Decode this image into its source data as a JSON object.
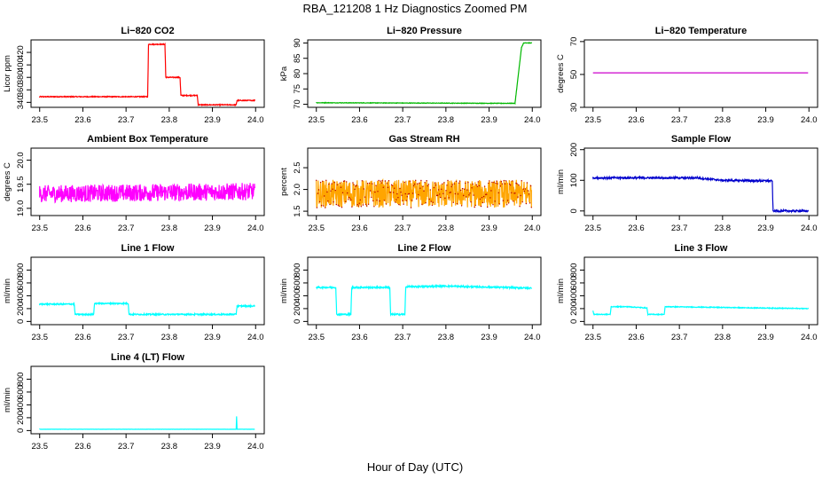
{
  "figure": {
    "title": "RBA_121208  1 Hz Diagnostics Zoomed PM",
    "xlabel": "Hour of Day (UTC)"
  },
  "chart_data": [
    {
      "type": "line",
      "title": "Li−820 CO2",
      "ylabel": "Licor ppm",
      "xlim": [
        23.48,
        24.02
      ],
      "ylim": [
        332,
        440
      ],
      "xticks": [
        "23.5",
        "23.6",
        "23.7",
        "23.8",
        "23.9",
        "24.0"
      ],
      "xtick_values": [
        23.5,
        23.6,
        23.7,
        23.8,
        23.9,
        24.0
      ],
      "yticks": [
        "340",
        "360",
        "380",
        "400",
        "420"
      ],
      "ytick_values": [
        340,
        360,
        380,
        400,
        420
      ],
      "color": "#ff0000",
      "noise": 0.7,
      "series": [
        {
          "name": "CO2",
          "segments": [
            [
              23.5,
              349
            ],
            [
              23.75,
              349
            ],
            [
              23.752,
              433
            ],
            [
              23.79,
              433
            ],
            [
              23.792,
              380
            ],
            [
              23.825,
              380
            ],
            [
              23.827,
              351
            ],
            [
              23.865,
              351
            ],
            [
              23.867,
              336
            ],
            [
              23.955,
              336
            ],
            [
              23.957,
              343
            ],
            [
              23.998,
              343
            ]
          ]
        }
      ]
    },
    {
      "type": "line",
      "title": "Li−820 Pressure",
      "ylabel": "kPa",
      "xlim": [
        23.48,
        24.02
      ],
      "ylim": [
        69,
        91
      ],
      "xticks": [
        "23.5",
        "23.6",
        "23.7",
        "23.8",
        "23.9",
        "24.0"
      ],
      "xtick_values": [
        23.5,
        23.6,
        23.7,
        23.8,
        23.9,
        24.0
      ],
      "yticks": [
        "70",
        "75",
        "80",
        "85",
        "90"
      ],
      "ytick_values": [
        70,
        75,
        80,
        85,
        90
      ],
      "color": "#00b800",
      "noise": 0.08,
      "series": [
        {
          "name": "Pressure",
          "segments": [
            [
              23.5,
              70.5
            ],
            [
              23.96,
              70.3
            ],
            [
              23.975,
              88.5
            ],
            [
              23.98,
              90
            ],
            [
              23.998,
              90
            ]
          ]
        }
      ]
    },
    {
      "type": "line",
      "title": "Li−820 Temperature",
      "ylabel": "degrees C",
      "xlim": [
        23.48,
        24.02
      ],
      "ylim": [
        30,
        71
      ],
      "xticks": [
        "23.5",
        "23.6",
        "23.7",
        "23.8",
        "23.9",
        "24.0"
      ],
      "xtick_values": [
        23.5,
        23.6,
        23.7,
        23.8,
        23.9,
        24.0
      ],
      "yticks": [
        "30",
        "50",
        "70"
      ],
      "ytick_values": [
        30,
        50,
        70
      ],
      "color": "#cc00cc",
      "noise": 0,
      "series": [
        {
          "name": "Temperature",
          "segments": [
            [
              23.5,
              51
            ],
            [
              23.998,
              51
            ]
          ]
        }
      ]
    },
    {
      "type": "line",
      "title": "Ambient Box Temperature",
      "ylabel": "degrees C",
      "xlim": [
        23.48,
        24.02
      ],
      "ylim": [
        18.85,
        20.25
      ],
      "xticks": [
        "23.5",
        "23.6",
        "23.7",
        "23.8",
        "23.9",
        "24.0"
      ],
      "xtick_values": [
        23.5,
        23.6,
        23.7,
        23.8,
        23.9,
        24.0
      ],
      "yticks": [
        "19.0",
        "19.5",
        "20.0"
      ],
      "ytick_values": [
        19.0,
        19.5,
        20.0
      ],
      "color": "#ff00ff",
      "noise": 0.18,
      "series": [
        {
          "name": "Box temperature",
          "segments": [
            [
              23.5,
              19.3
            ],
            [
              23.998,
              19.35
            ]
          ]
        }
      ]
    },
    {
      "type": "line",
      "title": "Gas Stream RH",
      "ylabel": "percent",
      "xlim": [
        23.48,
        24.02
      ],
      "ylim": [
        1.4,
        2.95
      ],
      "xticks": [
        "23.5",
        "23.6",
        "23.7",
        "23.8",
        "23.9",
        "24.0"
      ],
      "xtick_values": [
        23.5,
        23.6,
        23.7,
        23.8,
        23.9,
        24.0
      ],
      "yticks": [
        "1.5",
        "2.0",
        "2.5"
      ],
      "ytick_values": [
        1.5,
        2.0,
        2.5
      ],
      "color": "#ffa500",
      "dotcolor": "#b80000",
      "noise": 0.32,
      "series": [
        {
          "name": "RH",
          "segments": [
            [
              23.5,
              1.9
            ],
            [
              23.998,
              1.9
            ]
          ]
        }
      ]
    },
    {
      "type": "line",
      "title": "Sample Flow",
      "ylabel": "ml/min",
      "xlim": [
        23.48,
        24.02
      ],
      "ylim": [
        -15,
        205
      ],
      "xticks": [
        "23.5",
        "23.6",
        "23.7",
        "23.8",
        "23.9",
        "24.0"
      ],
      "xtick_values": [
        23.5,
        23.6,
        23.7,
        23.8,
        23.9,
        24.0
      ],
      "yticks": [
        "0",
        "100",
        "200"
      ],
      "ytick_values": [
        0,
        100,
        200
      ],
      "color": "#0000cc",
      "noise": 3,
      "series": [
        {
          "name": "Sample flow",
          "segments": [
            [
              23.5,
              108
            ],
            [
              23.74,
              108
            ],
            [
              23.8,
              100
            ],
            [
              23.915,
              98
            ],
            [
              23.917,
              0
            ],
            [
              23.998,
              0
            ]
          ]
        }
      ]
    },
    {
      "type": "line",
      "title": "Line 1 Flow",
      "ylabel": "ml/min",
      "xlim": [
        23.48,
        24.02
      ],
      "ylim": [
        -50,
        1000
      ],
      "xticks": [
        "23.5",
        "23.6",
        "23.7",
        "23.8",
        "23.9",
        "24.0"
      ],
      "xtick_values": [
        23.5,
        23.6,
        23.7,
        23.8,
        23.9,
        24.0
      ],
      "yticks": [
        "0",
        "200",
        "400",
        "600",
        "800"
      ],
      "ytick_values": [
        0,
        200,
        400,
        600,
        800
      ],
      "color": "#00ffff",
      "noise": 10,
      "series": [
        {
          "name": "Line 1",
          "segments": [
            [
              23.5,
              270
            ],
            [
              23.58,
              270
            ],
            [
              23.582,
              110
            ],
            [
              23.625,
              110
            ],
            [
              23.627,
              280
            ],
            [
              23.705,
              280
            ],
            [
              23.707,
              110
            ],
            [
              23.955,
              110
            ],
            [
              23.957,
              240
            ],
            [
              23.998,
              240
            ]
          ]
        }
      ]
    },
    {
      "type": "line",
      "title": "Line 2 Flow",
      "ylabel": "ml/min",
      "xlim": [
        23.48,
        24.02
      ],
      "ylim": [
        -50,
        1000
      ],
      "xticks": [
        "23.5",
        "23.6",
        "23.7",
        "23.8",
        "23.9",
        "24.0"
      ],
      "xtick_values": [
        23.5,
        23.6,
        23.7,
        23.8,
        23.9,
        24.0
      ],
      "yticks": [
        "0",
        "200",
        "400",
        "600",
        "800"
      ],
      "ytick_values": [
        0,
        200,
        400,
        600,
        800
      ],
      "color": "#00ffff",
      "noise": 12,
      "series": [
        {
          "name": "Line 2",
          "segments": [
            [
              23.5,
              530
            ],
            [
              23.545,
              530
            ],
            [
              23.547,
              110
            ],
            [
              23.58,
              110
            ],
            [
              23.582,
              530
            ],
            [
              23.67,
              530
            ],
            [
              23.672,
              110
            ],
            [
              23.705,
              110
            ],
            [
              23.707,
              540
            ],
            [
              23.8,
              550
            ],
            [
              23.998,
              520
            ]
          ]
        }
      ]
    },
    {
      "type": "line",
      "title": "Line 3 Flow",
      "ylabel": "ml/min",
      "xlim": [
        23.48,
        24.02
      ],
      "ylim": [
        -50,
        1000
      ],
      "xticks": [
        "23.5",
        "23.6",
        "23.7",
        "23.8",
        "23.9",
        "24.0"
      ],
      "xtick_values": [
        23.5,
        23.6,
        23.7,
        23.8,
        23.9,
        24.0
      ],
      "yticks": [
        "0",
        "200",
        "400",
        "600",
        "800"
      ],
      "ytick_values": [
        0,
        200,
        400,
        600,
        800
      ],
      "color": "#00ffff",
      "noise": 6,
      "series": [
        {
          "name": "Line 3",
          "segments": [
            [
              23.5,
              170
            ],
            [
              23.502,
              110
            ],
            [
              23.54,
              110
            ],
            [
              23.542,
              230
            ],
            [
              23.58,
              230
            ],
            [
              23.625,
              210
            ],
            [
              23.627,
              110
            ],
            [
              23.665,
              110
            ],
            [
              23.667,
              230
            ],
            [
              23.998,
              200
            ]
          ]
        }
      ]
    },
    {
      "type": "line",
      "title": "Line 4 (LT) Flow",
      "ylabel": "ml/min",
      "xlim": [
        23.48,
        24.02
      ],
      "ylim": [
        -50,
        1000
      ],
      "xticks": [
        "23.5",
        "23.6",
        "23.7",
        "23.8",
        "23.9",
        "24.0"
      ],
      "xtick_values": [
        23.5,
        23.6,
        23.7,
        23.8,
        23.9,
        24.0
      ],
      "yticks": [
        "0",
        "200",
        "400",
        "600",
        "800"
      ],
      "ytick_values": [
        0,
        200,
        400,
        600,
        800
      ],
      "color": "#00ffff",
      "noise": 1,
      "series": [
        {
          "name": "Line 4",
          "segments": [
            [
              23.5,
              20
            ],
            [
              23.955,
              20
            ],
            [
              23.956,
              220
            ],
            [
              23.957,
              20
            ],
            [
              23.998,
              20
            ]
          ]
        }
      ]
    }
  ]
}
